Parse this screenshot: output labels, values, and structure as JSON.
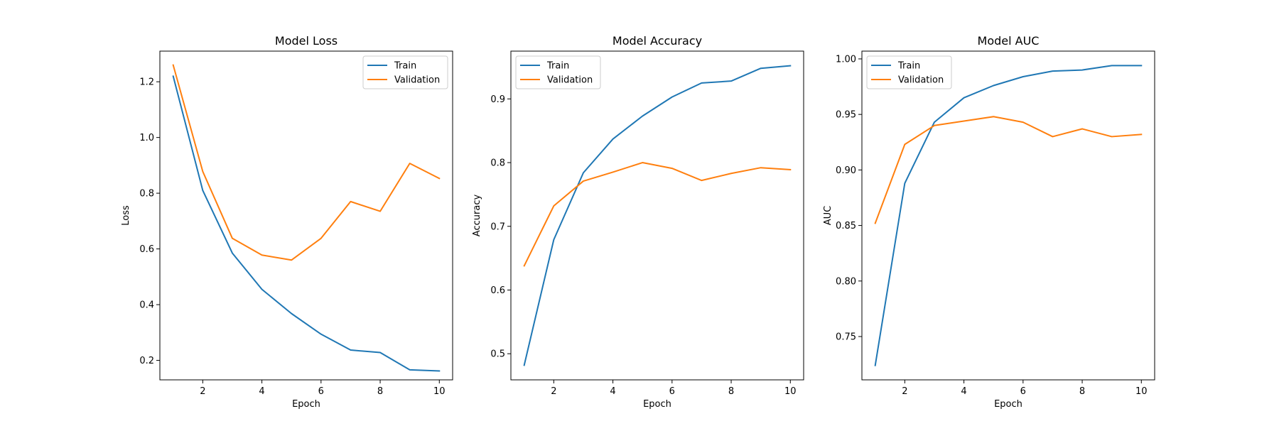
{
  "chart_data": [
    {
      "type": "line",
      "title": "Model Loss",
      "xlabel": "Epoch",
      "ylabel": "Loss",
      "x": [
        1,
        2,
        3,
        4,
        5,
        6,
        7,
        8,
        9,
        10
      ],
      "xlim": [
        0.55,
        10.45
      ],
      "ylim": [
        0.13,
        1.31
      ],
      "xticks": [
        2,
        4,
        6,
        8,
        10
      ],
      "xtick_labels": [
        "2",
        "4",
        "6",
        "8",
        "10"
      ],
      "yticks": [
        0.2,
        0.4,
        0.6,
        0.8,
        1.0,
        1.2
      ],
      "ytick_labels": [
        "0.2",
        "0.4",
        "0.6",
        "0.8",
        "1.0",
        "1.2"
      ],
      "grid": false,
      "legend_position": "upper right",
      "series": [
        {
          "name": "Train",
          "color": "#1f77b4",
          "values": [
            1.22,
            0.81,
            0.585,
            0.455,
            0.368,
            0.294,
            0.237,
            0.228,
            0.166,
            0.162
          ]
        },
        {
          "name": "Validation",
          "color": "#ff7f0e",
          "values": [
            1.26,
            0.878,
            0.638,
            0.578,
            0.56,
            0.638,
            0.77,
            0.735,
            0.907,
            0.853
          ]
        }
      ]
    },
    {
      "type": "line",
      "title": "Model Accuracy",
      "xlabel": "Epoch",
      "ylabel": "Accuracy",
      "x": [
        1,
        2,
        3,
        4,
        5,
        6,
        7,
        8,
        9,
        10
      ],
      "xlim": [
        0.55,
        10.45
      ],
      "ylim": [
        0.459,
        0.975
      ],
      "xticks": [
        2,
        4,
        6,
        8,
        10
      ],
      "xtick_labels": [
        "2",
        "4",
        "6",
        "8",
        "10"
      ],
      "yticks": [
        0.5,
        0.6,
        0.7,
        0.8,
        0.9
      ],
      "ytick_labels": [
        "0.5",
        "0.6",
        "0.7",
        "0.8",
        "0.9"
      ],
      "grid": false,
      "legend_position": "upper left",
      "series": [
        {
          "name": "Train",
          "color": "#1f77b4",
          "values": [
            0.482,
            0.679,
            0.784,
            0.837,
            0.873,
            0.903,
            0.925,
            0.928,
            0.948,
            0.952
          ]
        },
        {
          "name": "Validation",
          "color": "#ff7f0e",
          "values": [
            0.638,
            0.732,
            0.771,
            0.785,
            0.8,
            0.791,
            0.772,
            0.783,
            0.792,
            0.789
          ]
        }
      ]
    },
    {
      "type": "line",
      "title": "Model AUC",
      "xlabel": "Epoch",
      "ylabel": "AUC",
      "x": [
        1,
        2,
        3,
        4,
        5,
        6,
        7,
        8,
        9,
        10
      ],
      "xlim": [
        0.55,
        10.45
      ],
      "ylim": [
        0.711,
        1.007
      ],
      "xticks": [
        2,
        4,
        6,
        8,
        10
      ],
      "xtick_labels": [
        "2",
        "4",
        "6",
        "8",
        "10"
      ],
      "yticks": [
        0.75,
        0.8,
        0.85,
        0.9,
        0.95,
        1.0
      ],
      "ytick_labels": [
        "0.75",
        "0.80",
        "0.85",
        "0.90",
        "0.95",
        "1.00"
      ],
      "grid": false,
      "legend_position": "upper left",
      "series": [
        {
          "name": "Train",
          "color": "#1f77b4",
          "values": [
            0.724,
            0.888,
            0.943,
            0.965,
            0.976,
            0.984,
            0.989,
            0.99,
            0.994,
            0.994
          ]
        },
        {
          "name": "Validation",
          "color": "#ff7f0e",
          "values": [
            0.852,
            0.923,
            0.94,
            0.944,
            0.948,
            0.943,
            0.93,
            0.937,
            0.93,
            0.932
          ]
        }
      ]
    }
  ]
}
